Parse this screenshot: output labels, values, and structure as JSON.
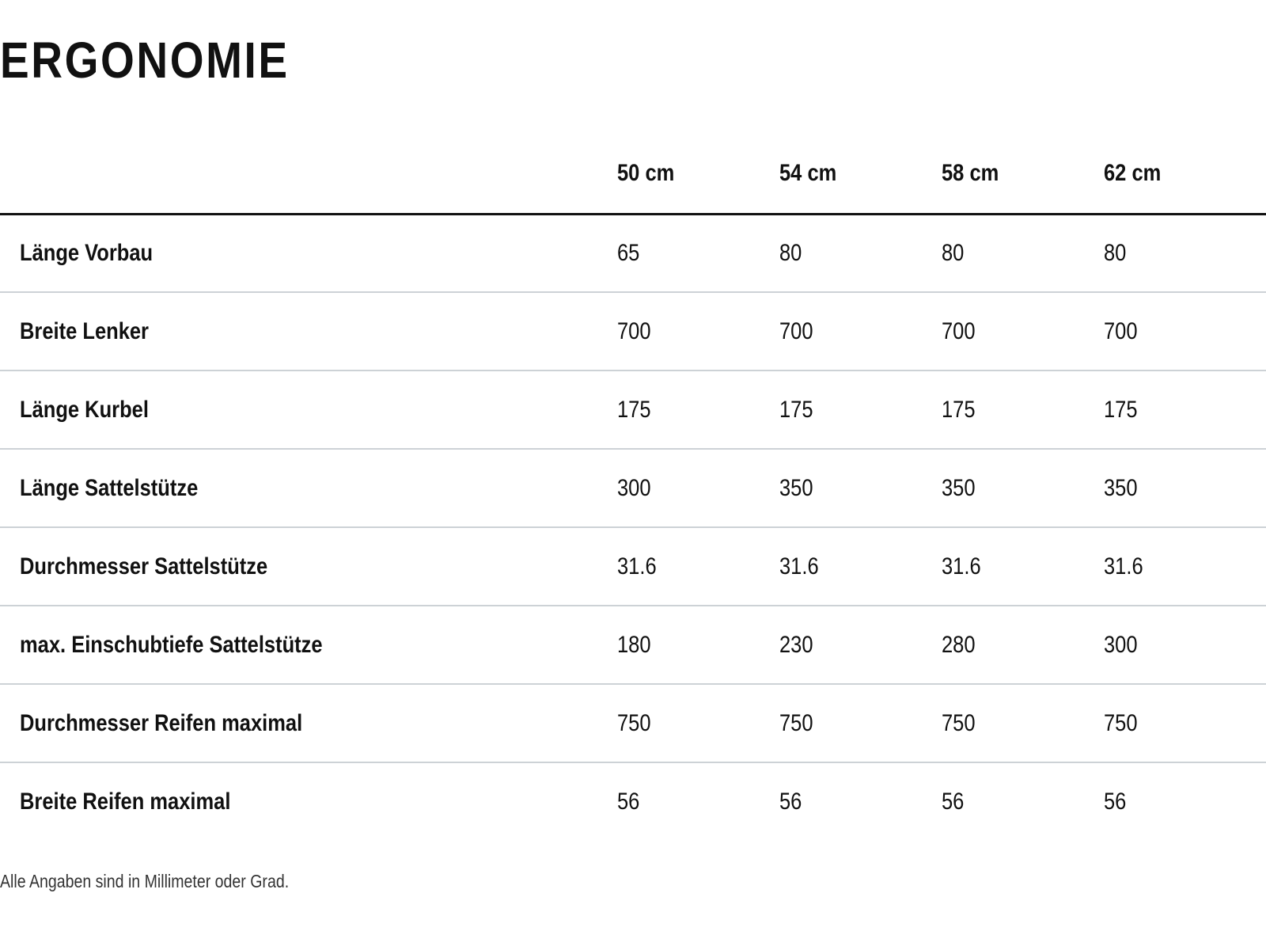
{
  "title": "ERGONOMIE",
  "table": {
    "columns": [
      "50 cm",
      "54 cm",
      "58 cm",
      "62 cm"
    ],
    "rows": [
      {
        "label": "Länge Vorbau",
        "values": [
          "65",
          "80",
          "80",
          "80"
        ]
      },
      {
        "label": "Breite Lenker",
        "values": [
          "700",
          "700",
          "700",
          "700"
        ]
      },
      {
        "label": "Länge Kurbel",
        "values": [
          "175",
          "175",
          "175",
          "175"
        ]
      },
      {
        "label": "Länge Sattelstütze",
        "values": [
          "300",
          "350",
          "350",
          "350"
        ]
      },
      {
        "label": "Durchmesser Sattelstütze",
        "values": [
          "31.6",
          "31.6",
          "31.6",
          "31.6"
        ]
      },
      {
        "label": "max. Einschubtiefe Sattelstütze",
        "values": [
          "180",
          "230",
          "280",
          "300"
        ]
      },
      {
        "label": "Durchmesser Reifen maximal",
        "values": [
          "750",
          "750",
          "750",
          "750"
        ]
      },
      {
        "label": "Breite Reifen maximal",
        "values": [
          "56",
          "56",
          "56",
          "56"
        ]
      }
    ]
  },
  "footnote": "Alle Angaben sind in Millimeter oder Grad."
}
